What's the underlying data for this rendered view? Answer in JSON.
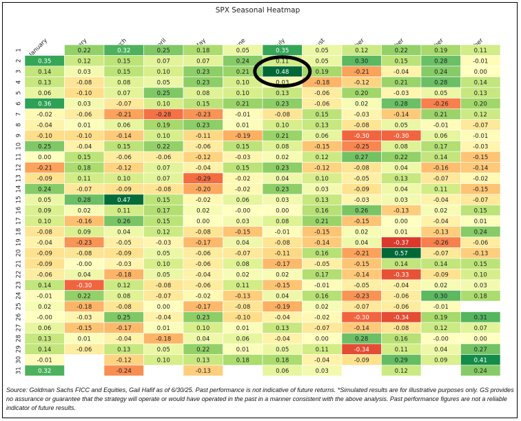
{
  "chart_data": {
    "type": "heatmap",
    "title": "SPX Seasonal Heatmap",
    "columns": [
      "January",
      "February",
      "March",
      "April",
      "May",
      "June",
      "July",
      "August",
      "September",
      "October",
      "November",
      "December"
    ],
    "rows": [
      "1",
      "2",
      "3",
      "4",
      "5",
      "6",
      "7",
      "8",
      "9",
      "10",
      "11",
      "12",
      "13",
      "14",
      "15",
      "16",
      "17",
      "18",
      "19",
      "20",
      "21",
      "22",
      "23",
      "24",
      "25",
      "26",
      "27",
      "28",
      "29",
      "30",
      "31"
    ],
    "values": [
      [
        null,
        "0.22",
        "0.32",
        "0.25",
        "0.18",
        "0.05",
        "0.35",
        "0.05",
        "0.12",
        "0.22",
        "0.19",
        "0.11"
      ],
      [
        "0.35",
        "0.12",
        "0.15",
        "0.07",
        "0.07",
        "0.24",
        "0.11",
        "0.05",
        "0.30",
        "0.15",
        "0.28",
        "-0.01"
      ],
      [
        "0.14",
        "0.03",
        "0.15",
        "0.10",
        "0.23",
        "0.21",
        "0.48",
        "0.19",
        "-0.21",
        "-0.04",
        "0.24",
        "0.00"
      ],
      [
        "0.13",
        "-0.08",
        "0.08",
        "0.05",
        "0.23",
        "0.10",
        "0.03",
        "-0.18",
        "-0.12",
        "0.21",
        "0.28",
        "0.14"
      ],
      [
        "0.06",
        "-0.10",
        "0.07",
        "0.25",
        "0.08",
        "0.10",
        "0.13",
        "-0.06",
        "0.20",
        "-0.03",
        "0.05",
        "0.13"
      ],
      [
        "0.36",
        "0.03",
        "-0.07",
        "0.10",
        "0.15",
        "0.21",
        "0.23",
        "-0.06",
        "0.02",
        "0.28",
        "-0.26",
        "0.20"
      ],
      [
        "-0.02",
        "-0.06",
        "-0.21",
        "-0.28",
        "-0.23",
        "-0.01",
        "-0.08",
        "0.15",
        "-0.03",
        "-0.14",
        "0.21",
        "0.12"
      ],
      [
        "-0.04",
        "0.01",
        "0.06",
        "0.19",
        "0.23",
        "0.01",
        "0.10",
        "0.13",
        "-0.08",
        "0.05",
        "-0.01",
        "-0.07"
      ],
      [
        "-0.10",
        "-0.10",
        "-0.14",
        "0.10",
        "-0.11",
        "-0.19",
        "0.21",
        "0.06",
        "-0.30",
        "-0.30",
        "0.06",
        "-0.01"
      ],
      [
        "0.25",
        "-0.04",
        "0.15",
        "0.22",
        "-0.06",
        "0.15",
        "0.08",
        "-0.15",
        "-0.25",
        "0.08",
        "0.17",
        "-0.03"
      ],
      [
        "0.00",
        "0.15",
        "-0.06",
        "-0.06",
        "-0.12",
        "-0.03",
        "0.02",
        "0.12",
        "0.27",
        "0.22",
        "0.14",
        "-0.15"
      ],
      [
        "-0.21",
        "0.18",
        "-0.12",
        "0.07",
        "-0.04",
        "0.15",
        "0.23",
        "-0.12",
        "-0.08",
        "0.04",
        "-0.16",
        "-0.14"
      ],
      [
        "-0.09",
        "0.11",
        "0.10",
        "0.07",
        "-0.29",
        "-0.02",
        "0.04",
        "0.10",
        "-0.05",
        "0.13",
        "-0.07",
        "-0.02"
      ],
      [
        "0.24",
        "-0.07",
        "-0.09",
        "-0.08",
        "-0.20",
        "-0.02",
        "0.23",
        "0.03",
        "-0.09",
        "0.04",
        "0.11",
        "-0.15"
      ],
      [
        "0.05",
        "0.28",
        "0.47",
        "0.15",
        "-0.02",
        "0.06",
        "0.03",
        "0.13",
        "-0.03",
        "0.03",
        "-0.04",
        "-0.07"
      ],
      [
        "0.09",
        "0.02",
        "0.11",
        "0.17",
        "0.02",
        "-0.00",
        "0.00",
        "0.16",
        "0.26",
        "-0.13",
        "0.02",
        "0.15"
      ],
      [
        "0.10",
        "-0.16",
        "0.26",
        "0.15",
        "0.00",
        "0.03",
        "0.08",
        "0.21",
        "-0.15",
        "0.00",
        "-0.04",
        "0.01"
      ],
      [
        "-0.08",
        "0.09",
        "0.04",
        "0.12",
        "-0.08",
        "-0.15",
        "-0.01",
        "-0.15",
        "0.02",
        "0.01",
        "-0.13",
        "0.24"
      ],
      [
        "-0.04",
        "-0.23",
        "-0.05",
        "-0.03",
        "-0.17",
        "0.04",
        "-0.08",
        "-0.14",
        "0.04",
        "-0.37",
        "-0.26",
        "-0.06"
      ],
      [
        "-0.09",
        "-0.08",
        "-0.09",
        "0.05",
        "-0.06",
        "-0.07",
        "-0.11",
        "0.16",
        "-0.21",
        "0.57",
        "-0.07",
        "-0.13"
      ],
      [
        "-0.09",
        "-0.00",
        "-0.03",
        "0.10",
        "-0.06",
        "0.08",
        "-0.17",
        "-0.05",
        "-0.15",
        "0.14",
        "0.14",
        "0.15"
      ],
      [
        "-0.06",
        "0.04",
        "-0.18",
        "0.05",
        "-0.04",
        "0.02",
        "0.02",
        "0.17",
        "-0.14",
        "-0.33",
        "-0.09",
        "0.10"
      ],
      [
        "0.14",
        "-0.30",
        "0.12",
        "-0.08",
        "-0.06",
        "0.11",
        "-0.15",
        "-0.01",
        "-0.05",
        "-0.04",
        "0.02",
        "0.03"
      ],
      [
        "-0.01",
        "0.22",
        "0.08",
        "-0.07",
        "-0.02",
        "-0.13",
        "0.04",
        "0.16",
        "-0.23",
        "-0.06",
        "0.30",
        "0.18"
      ],
      [
        "0.02",
        "-0.18",
        "-0.08",
        "0.00",
        "-0.17",
        "-0.08",
        "-0.19",
        "0.02",
        "-0.07",
        "-0.06",
        "-0.01",
        null
      ],
      [
        "-0.00",
        "-0.03",
        "0.25",
        "-0.04",
        "0.23",
        "-0.10",
        "-0.04",
        "-0.02",
        "-0.30",
        "-0.34",
        "0.19",
        "0.31"
      ],
      [
        "0.06",
        "-0.15",
        "-0.17",
        "0.01",
        "0.10",
        "0.01",
        "0.13",
        "-0.07",
        "-0.14",
        "-0.08",
        "0.12",
        "0.07"
      ],
      [
        "0.13",
        "0.01",
        "-0.04",
        "-0.18",
        "0.04",
        "0.06",
        "-0.04",
        "0.00",
        "0.28",
        "0.16",
        "-0.00",
        "0.00"
      ],
      [
        "0.14",
        "-0.06",
        "0.13",
        "0.05",
        "0.22",
        "0.01",
        "0.05",
        "0.11",
        "-0.34",
        "0.11",
        "0.04",
        "0.27"
      ],
      [
        "-0.01",
        null,
        "-0.12",
        "0.10",
        "0.13",
        "0.18",
        "0.18",
        "-0.04",
        "-0.09",
        "0.29",
        "0.09",
        "0.41"
      ],
      [
        "0.32",
        null,
        "-0.24",
        null,
        "-0.13",
        null,
        "0.06",
        "0.03",
        null,
        "0.12",
        null,
        "0.24"
      ]
    ],
    "color_scale": "RdYlGn",
    "value_range": [
      -0.48,
      0.48
    ],
    "annotation": {
      "type": "ellipse",
      "row": "3",
      "column": "July",
      "color": "#000000"
    }
  },
  "caption": "Source: Goldman Sachs FICC and Equities, Gail Hafif as of 6/30/25. Past performance is not indicative of future returns. *Simulated results are for illustrative purposes only. GS provides no assurance or guarantee that the strategy will operate or would have operated in the past in a manner consistent with the above analysis. Past performance figures are not a reliable indicator of future results."
}
